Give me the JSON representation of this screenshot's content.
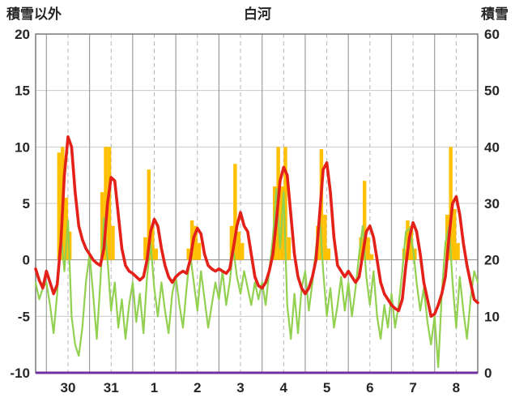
{
  "header": {
    "left_label": "積雪以外",
    "title": "白河",
    "right_label": "積雪"
  },
  "chart_data": {
    "type": "line",
    "title": "白河",
    "left_axis": {
      "label": "積雪以外",
      "min": -10,
      "max": 20,
      "ticks": [
        20,
        15,
        10,
        5,
        0,
        -5,
        -10
      ]
    },
    "right_axis": {
      "label": "積雪",
      "min": 0,
      "max": 60,
      "ticks": [
        60,
        50,
        40,
        30,
        20,
        10,
        0
      ]
    },
    "x_axis": {
      "day_labels": [
        "30",
        "31",
        "1",
        "2",
        "3",
        "4",
        "5",
        "6",
        "7",
        "8"
      ],
      "start_hour": -6,
      "end_hour": 240,
      "step_hours": 2,
      "solid_gridline_at": "day-start",
      "dashed_gridline_at": "day-noon"
    },
    "grid": {
      "h_color": "#c9c9c9",
      "zero_color": "#8f8f8f",
      "v_solid_color": "#9e9e9e",
      "v_dashed_color": "#b5b5b5",
      "frame_color": "#7a7a7a"
    },
    "series": [
      {
        "name": "yellow_bars",
        "type": "bar",
        "color": "#ffc000",
        "axis": "left",
        "values": [
          0,
          0,
          0,
          0,
          0,
          0,
          9.5,
          10,
          5.5,
          2.5,
          0,
          0,
          0,
          0,
          0,
          0,
          0,
          0,
          6,
          10,
          10,
          3,
          0,
          0,
          0,
          0,
          0,
          0,
          0,
          0,
          2,
          8,
          3,
          1,
          0,
          0,
          0,
          0,
          0,
          0,
          0,
          0,
          1,
          3.5,
          3,
          1.5,
          0,
          0,
          0,
          0,
          0,
          0,
          0,
          0,
          3,
          8.5,
          2.5,
          1.5,
          0,
          0,
          0,
          0,
          0,
          0,
          0,
          0,
          6.5,
          10,
          6.5,
          10,
          2,
          0,
          0,
          0,
          0,
          0,
          0,
          0,
          3,
          9.8,
          4,
          1,
          0,
          0,
          0,
          0,
          0,
          0,
          0,
          0,
          2,
          7,
          2,
          0.5,
          0,
          0,
          0,
          0,
          0,
          0,
          0,
          0,
          1,
          3.5,
          3,
          1,
          0,
          0,
          0,
          0,
          0,
          0,
          0,
          0,
          4,
          10,
          4.5,
          1.5,
          0,
          0,
          0,
          0,
          0,
          0
        ]
      },
      {
        "name": "green_line",
        "type": "line",
        "color": "#92d050",
        "axis": "left",
        "values": [
          -2.0,
          -3.5,
          -2.5,
          -2.0,
          -4.0,
          -6.5,
          -3.0,
          2.5,
          -1.0,
          3.5,
          -5.0,
          -7.5,
          -8.5,
          -6.0,
          -2.0,
          0.5,
          -3.0,
          -7.0,
          -2.0,
          3.7,
          0.0,
          -4.5,
          -2.0,
          -6.0,
          -3.5,
          -7.0,
          -4.0,
          -2.0,
          -5.5,
          -3.0,
          -6.5,
          -1.5,
          1.5,
          -2.5,
          -5.0,
          -2.0,
          -4.5,
          -6.5,
          -3.0,
          -1.5,
          -4.0,
          -6.0,
          -2.5,
          0.5,
          -2.0,
          -4.5,
          -1.0,
          -3.5,
          -6.0,
          -4.0,
          -2.0,
          -3.5,
          -1.0,
          -4.0,
          -2.0,
          1.0,
          -1.5,
          -3.0,
          -1.0,
          -2.5,
          -4.0,
          -2.0,
          -3.5,
          -2.0,
          -4.0,
          -1.0,
          2.0,
          6.3,
          1.0,
          6.0,
          -4.0,
          -7.0,
          -3.0,
          -6.5,
          -2.5,
          -1.0,
          -4.5,
          -2.0,
          1.0,
          4.0,
          -1.0,
          -5.0,
          -2.5,
          -6.0,
          -4.0,
          -1.5,
          -4.5,
          -2.0,
          -5.0,
          -2.5,
          0.5,
          3.0,
          -1.5,
          -4.0,
          -1.0,
          -5.0,
          -7.0,
          -4.0,
          -6.0,
          -3.0,
          -6.0,
          -4.0,
          -1.0,
          2.5,
          2.8,
          1.0,
          -2.0,
          -4.5,
          -2.5,
          -5.5,
          -7.5,
          -5.0,
          -9.5,
          -3.0,
          1.5,
          3.0,
          -2.0,
          -6.0,
          -1.5,
          -4.5,
          -7.0,
          -3.5,
          -1.0,
          -2.0
        ]
      },
      {
        "name": "red_line",
        "type": "line",
        "color": "#e32119",
        "axis": "left",
        "values": [
          -0.8,
          -1.8,
          -2.5,
          -1.0,
          -2.0,
          -3.0,
          -2.2,
          1.5,
          7.5,
          10.9,
          10.0,
          6.0,
          3.0,
          1.8,
          1.0,
          0.5,
          0.0,
          -0.3,
          -0.5,
          1.0,
          5.0,
          7.3,
          7.0,
          4.0,
          1.0,
          -0.5,
          -1.0,
          -1.2,
          -1.5,
          -1.8,
          -1.5,
          0.0,
          2.5,
          3.6,
          3.0,
          1.0,
          -0.5,
          -1.5,
          -2.0,
          -1.5,
          -1.2,
          -1.0,
          -1.2,
          0.0,
          2.0,
          2.8,
          2.3,
          0.5,
          -0.5,
          -0.8,
          -1.0,
          -0.8,
          -1.0,
          -1.2,
          -0.8,
          1.0,
          3.0,
          4.2,
          3.0,
          2.5,
          0.5,
          -1.5,
          -2.3,
          -2.5,
          -2.0,
          -1.0,
          0.5,
          3.5,
          7.0,
          8.2,
          7.5,
          4.0,
          0.5,
          -1.5,
          -2.5,
          -3.0,
          -2.5,
          -1.5,
          0.0,
          4.0,
          8.0,
          8.6,
          6.0,
          2.0,
          -0.5,
          -1.0,
          -1.5,
          -1.0,
          -1.5,
          -2.0,
          -1.5,
          0.5,
          2.5,
          3.0,
          2.0,
          0.0,
          -2.0,
          -3.0,
          -3.5,
          -4.0,
          -4.3,
          -4.5,
          -3.5,
          -0.5,
          2.0,
          3.3,
          2.5,
          0.5,
          -2.0,
          -3.5,
          -5.0,
          -4.8,
          -4.0,
          -3.0,
          -1.5,
          2.0,
          5.0,
          5.6,
          4.0,
          1.5,
          -0.5,
          -2.0,
          -3.5,
          -3.8
        ]
      },
      {
        "name": "snow_depth_purple_line",
        "type": "line",
        "color": "#7030a0",
        "axis": "right",
        "constant_value": 0
      }
    ]
  }
}
